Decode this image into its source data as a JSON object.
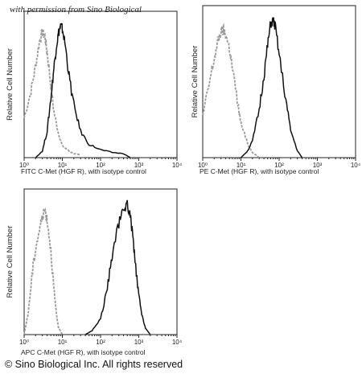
{
  "watermark": "with permission from Sino Biological",
  "footer": {
    "copyright": "© Sino Biological Inc. All rights reserved"
  },
  "chart_data": [
    {
      "type": "line",
      "xscale": "log",
      "xlim": [
        1,
        10000
      ],
      "xticks": [
        "10⁰",
        "10¹",
        "10²",
        "10³",
        "10⁴"
      ],
      "xlabel": "FITC C-Met (HGF R), with isotype control",
      "ylabel": "Relative Cell Number",
      "grid": false,
      "series": [
        {
          "style": "isotype-gray-dashed",
          "x": [
            1.0,
            1.5,
            2.0,
            2.5,
            3.0,
            3.5,
            4.0,
            5.0,
            6.0,
            8.0,
            10,
            15,
            20,
            30
          ],
          "y": [
            0.3,
            0.5,
            0.7,
            0.88,
            0.95,
            0.92,
            0.8,
            0.55,
            0.35,
            0.18,
            0.09,
            0.05,
            0.03,
            0.02
          ]
        },
        {
          "style": "cmet-black",
          "x": [
            2,
            3,
            4,
            5,
            6,
            7,
            8,
            9,
            10,
            12,
            15,
            20,
            30,
            50,
            100,
            200,
            400,
            600
          ],
          "y": [
            0.0,
            0.05,
            0.2,
            0.45,
            0.68,
            0.85,
            0.95,
            1.0,
            0.98,
            0.85,
            0.62,
            0.4,
            0.2,
            0.1,
            0.06,
            0.04,
            0.03,
            0.0
          ]
        }
      ]
    },
    {
      "type": "line",
      "xscale": "log",
      "xlim": [
        1,
        10000
      ],
      "xticks": [
        "10⁰",
        "10¹",
        "10²",
        "10³",
        "10⁴"
      ],
      "xlabel": "PE C-Met (HGF R), with isotype control",
      "ylabel": "Relative Cell Number",
      "grid": false,
      "series": [
        {
          "style": "isotype-gray-dashed",
          "x": [
            1.0,
            1.5,
            2.0,
            2.5,
            3.0,
            3.5,
            4.0,
            5.0,
            6.0,
            8.0,
            10,
            15,
            20,
            30
          ],
          "y": [
            0.3,
            0.55,
            0.72,
            0.85,
            0.92,
            0.93,
            0.9,
            0.8,
            0.65,
            0.42,
            0.25,
            0.1,
            0.04,
            0.0
          ]
        },
        {
          "style": "cmet-black",
          "x": [
            10,
            15,
            20,
            30,
            40,
            50,
            60,
            70,
            80,
            100,
            150,
            200,
            300,
            400
          ],
          "y": [
            0.0,
            0.05,
            0.12,
            0.35,
            0.6,
            0.82,
            0.98,
            1.0,
            0.95,
            0.75,
            0.42,
            0.2,
            0.05,
            0.0
          ]
        }
      ]
    },
    {
      "type": "line",
      "xscale": "log",
      "xlim": [
        1,
        10000
      ],
      "xticks": [
        "10⁰",
        "10¹",
        "10²",
        "10³",
        "10⁴"
      ],
      "xlabel": "APC C-Met (HGF R), with isotype control",
      "ylabel": "Relative Cell Number",
      "grid": false,
      "series": [
        {
          "style": "isotype-gray-dashed",
          "x": [
            1.0,
            1.3,
            1.6,
            2.0,
            2.5,
            3.0,
            3.5,
            4.0,
            5.0,
            6.0,
            7.0,
            8.0,
            10
          ],
          "y": [
            0.0,
            0.18,
            0.45,
            0.66,
            0.8,
            0.9,
            0.95,
            0.88,
            0.65,
            0.35,
            0.15,
            0.05,
            0.0
          ]
        },
        {
          "style": "cmet-black",
          "x": [
            40,
            60,
            100,
            150,
            200,
            300,
            400,
            500,
            600,
            700,
            800,
            1000,
            1200,
            1500,
            2000
          ],
          "y": [
            0.0,
            0.03,
            0.12,
            0.35,
            0.6,
            0.85,
            0.95,
            1.0,
            0.9,
            0.75,
            0.55,
            0.3,
            0.15,
            0.05,
            0.0
          ]
        }
      ]
    }
  ]
}
